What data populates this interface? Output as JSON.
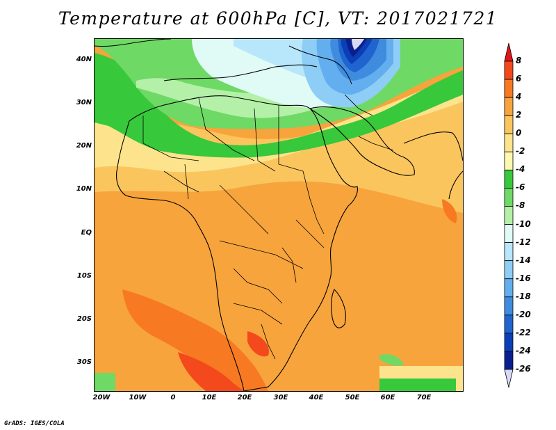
{
  "title": "Temperature at 600hPa [C], VT: 2017021721",
  "credit": "GrADS: IGES/COLA",
  "map": {
    "region": "Africa / Middle East",
    "projection": "latlon",
    "lon_range": [
      -23,
      80
    ],
    "lat_range": [
      -37,
      45
    ],
    "lat_labels": [
      "40N",
      "30N",
      "20N",
      "10N",
      "EQ",
      "10S",
      "20S",
      "30S"
    ],
    "lon_labels": [
      "20W",
      "10W",
      "0",
      "10E",
      "20E",
      "30E",
      "40E",
      "50E",
      "60E",
      "70E"
    ]
  },
  "colorbar": {
    "labels": [
      "8",
      "6",
      "4",
      "2",
      "0",
      "-2",
      "-4",
      "-6",
      "-8",
      "-10",
      "-12",
      "-14",
      "-16",
      "-18",
      "-20",
      "-22",
      "-24",
      "-26"
    ],
    "colors": [
      "#e1151a",
      "#f4491c",
      "#f77a22",
      "#f7a43c",
      "#fbc55e",
      "#fde48c",
      "#fff8b0",
      "#37c83b",
      "#6ed965",
      "#b4f0a8",
      "#e0fbf6",
      "#b8e6fb",
      "#8ecdf5",
      "#63aeee",
      "#3f8cdf",
      "#1f64cf",
      "#0a3fb7",
      "#0a1f8f",
      "#d8d8f7"
    ]
  }
}
